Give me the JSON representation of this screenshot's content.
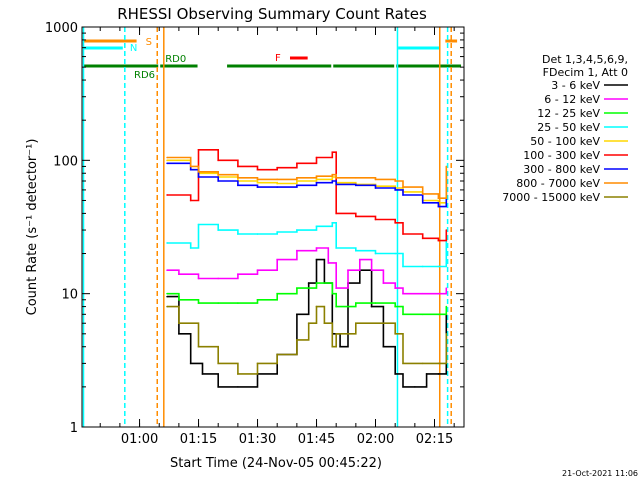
{
  "chart_data": {
    "type": "line",
    "title": "RHESSI Observing Summary Count Rates",
    "xlabel": "Start Time (24-Nov-05 00:45:22)",
    "ylabel": "Count Rate (s⁻¹ detector⁻¹)",
    "yscale": "log",
    "ylim": [
      1,
      1000
    ],
    "xlim": [
      "00:45:22",
      "02:22:30"
    ],
    "yticks": [
      {
        "value": 1,
        "label": "1"
      },
      {
        "value": 10,
        "label": "10"
      },
      {
        "value": 100,
        "label": "100"
      },
      {
        "value": 1000,
        "label": "1000"
      }
    ],
    "xticks": [
      {
        "value": "01:00",
        "label": "01:00"
      },
      {
        "value": "01:15",
        "label": "01:15"
      },
      {
        "value": "01:30",
        "label": "01:30"
      },
      {
        "value": "01:45",
        "label": "01:45"
      },
      {
        "value": "02:00",
        "label": "02:00"
      },
      {
        "value": "02:15",
        "label": "02:15"
      }
    ],
    "legend": {
      "position": "right",
      "header": [
        "Det 1,3,4,5,6,9,",
        "FDecim 1, Att 0"
      ]
    },
    "series": [
      {
        "name": "3 - 6 keV",
        "color": "#000000",
        "x": [
          "01:07",
          "01:10",
          "01:13",
          "01:16",
          "01:20",
          "01:25",
          "01:30",
          "01:35",
          "01:40",
          "01:43",
          "01:45",
          "01:47",
          "01:49",
          "01:51",
          "01:53",
          "01:56",
          "01:59",
          "02:02",
          "02:05",
          "02:07",
          "02:10",
          "02:13",
          "02:16",
          "02:18"
        ],
        "values": [
          9.5,
          5,
          3,
          2.5,
          2,
          2,
          2.5,
          3.5,
          7,
          12,
          18,
          12,
          5,
          4,
          12,
          15,
          8,
          4,
          2.5,
          2,
          2,
          2.5,
          2.5,
          7
        ]
      },
      {
        "name": "6 - 12 keV",
        "color": "#ff00ff",
        "x": [
          "01:07",
          "01:10",
          "01:15",
          "01:20",
          "01:25",
          "01:30",
          "01:35",
          "01:40",
          "01:45",
          "01:48",
          "01:50",
          "01:53",
          "01:56",
          "01:59",
          "02:02",
          "02:05",
          "02:07",
          "02:12",
          "02:16",
          "02:18"
        ],
        "values": [
          15,
          14,
          13,
          13,
          14,
          15,
          18,
          21,
          22,
          17,
          11,
          15,
          18,
          15,
          12,
          11,
          10,
          10,
          10,
          11
        ]
      },
      {
        "name": "12 - 25 keV",
        "color": "#00ff00",
        "x": [
          "01:07",
          "01:10",
          "01:15",
          "01:20",
          "01:25",
          "01:30",
          "01:35",
          "01:40",
          "01:45",
          "01:49",
          "01:50",
          "01:55",
          "02:00",
          "02:05",
          "02:07",
          "02:12",
          "02:16",
          "02:18"
        ],
        "values": [
          10,
          9,
          8.5,
          8.5,
          8.5,
          9,
          10,
          11,
          12,
          10,
          8,
          8.5,
          8.5,
          8,
          7,
          7,
          7,
          8
        ]
      },
      {
        "name": "25 - 50 keV",
        "color": "#00ffff",
        "x": [
          "01:07",
          "01:13",
          "01:15",
          "01:20",
          "01:25",
          "01:30",
          "01:35",
          "01:40",
          "01:45",
          "01:49",
          "01:50",
          "01:55",
          "02:00",
          "02:05",
          "02:07",
          "02:12",
          "02:16",
          "02:18"
        ],
        "values": [
          24,
          22,
          33,
          30,
          28,
          28,
          29,
          30,
          32,
          34,
          22,
          21,
          20,
          20,
          16,
          16,
          16,
          25
        ]
      },
      {
        "name": "50 - 100 keV",
        "color": "#ffd700",
        "x": [
          "01:07",
          "01:13",
          "01:15",
          "01:20",
          "01:25",
          "01:30",
          "01:35",
          "01:40",
          "01:45",
          "01:49",
          "01:50",
          "01:55",
          "02:00",
          "02:05",
          "02:07",
          "02:12",
          "02:16",
          "02:18"
        ],
        "values": [
          100,
          85,
          80,
          75,
          70,
          68,
          67,
          70,
          72,
          75,
          68,
          66,
          64,
          62,
          58,
          50,
          48,
          85
        ]
      },
      {
        "name": "100 - 300 keV",
        "color": "#ff0000",
        "x": [
          "01:07",
          "01:13",
          "01:15",
          "01:20",
          "01:25",
          "01:30",
          "01:35",
          "01:40",
          "01:45",
          "01:49",
          "01:50",
          "01:55",
          "02:00",
          "02:05",
          "02:07",
          "02:12",
          "02:16",
          "02:18"
        ],
        "values": [
          55,
          50,
          120,
          100,
          90,
          85,
          88,
          95,
          105,
          115,
          40,
          38,
          36,
          34,
          28,
          26,
          25,
          30
        ]
      },
      {
        "name": "300 - 800 keV",
        "color": "#0000ff",
        "x": [
          "01:07",
          "01:13",
          "01:15",
          "01:20",
          "01:25",
          "01:30",
          "01:35",
          "01:40",
          "01:45",
          "01:49",
          "01:50",
          "01:55",
          "02:00",
          "02:05",
          "02:07",
          "02:12",
          "02:16",
          "02:18"
        ],
        "values": [
          95,
          85,
          75,
          70,
          65,
          63,
          63,
          65,
          68,
          70,
          66,
          65,
          62,
          60,
          55,
          48,
          45,
          80
        ]
      },
      {
        "name": "800 - 7000 keV",
        "color": "#ff8c00",
        "x": [
          "01:07",
          "01:13",
          "01:15",
          "01:20",
          "01:25",
          "01:30",
          "01:35",
          "01:40",
          "01:45",
          "01:49",
          "01:50",
          "01:55",
          "02:00",
          "02:05",
          "02:07",
          "02:12",
          "02:16",
          "02:18"
        ],
        "values": [
          105,
          90,
          82,
          78,
          74,
          72,
          72,
          74,
          76,
          78,
          74,
          74,
          72,
          70,
          63,
          56,
          52,
          90
        ]
      },
      {
        "name": "7000 - 15000 keV",
        "color": "#8b8000",
        "x": [
          "01:07",
          "01:10",
          "01:15",
          "01:20",
          "01:25",
          "01:30",
          "01:35",
          "01:40",
          "01:43",
          "01:45",
          "01:47",
          "01:49",
          "01:50",
          "01:55",
          "02:00",
          "02:05",
          "02:07",
          "02:12",
          "02:16",
          "02:18"
        ],
        "values": [
          8,
          6,
          4,
          3,
          2.5,
          3,
          3.5,
          4.5,
          6,
          8,
          6,
          4,
          5,
          6,
          6,
          5,
          3,
          3,
          3,
          5
        ]
      }
    ],
    "flags": [
      {
        "label": "S",
        "color": "#ff8c00",
        "segments": [
          [
            "00:45:22",
            "00:59:30"
          ],
          [
            "02:17:30",
            "02:21:00"
          ]
        ]
      },
      {
        "label": "N",
        "color": "#00ffff",
        "segments": [
          [
            "00:45:22",
            "00:56:00"
          ],
          [
            "02:05:30",
            "02:16:30"
          ]
        ]
      },
      {
        "label": "RD6",
        "color": "#008000",
        "segments": [
          [
            "00:45:22",
            "01:05:00"
          ]
        ]
      },
      {
        "label": "RD0",
        "color": "#008000",
        "segments": [
          [
            "01:05:00",
            "01:15:00"
          ],
          [
            "01:22:00",
            "01:49:00"
          ],
          [
            "01:49:00",
            "02:05:00"
          ],
          [
            "02:05:00",
            "02:22:00"
          ]
        ]
      },
      {
        "label": "F",
        "color": "#ff0000",
        "segments": [
          [
            "01:38:00",
            "01:43:00"
          ]
        ]
      }
    ],
    "vlines": [
      {
        "time": "00:45:45",
        "color": "#00ffff",
        "style": "solid"
      },
      {
        "time": "00:56:15",
        "color": "#00ffff",
        "style": "dashed"
      },
      {
        "time": "01:04:30",
        "color": "#ff8c00",
        "style": "dashed"
      },
      {
        "time": "01:06:10",
        "color": "#ff8c00",
        "style": "solid"
      },
      {
        "time": "02:05:35",
        "color": "#00ffff",
        "style": "solid"
      },
      {
        "time": "02:16:20",
        "color": "#ff8c00",
        "style": "solid"
      },
      {
        "time": "02:18:20",
        "color": "#00ffff",
        "style": "dashed"
      },
      {
        "time": "02:19:15",
        "color": "#ff8c00",
        "style": "dashed"
      }
    ],
    "timestamp": "21-Oct-2021 11:06"
  }
}
